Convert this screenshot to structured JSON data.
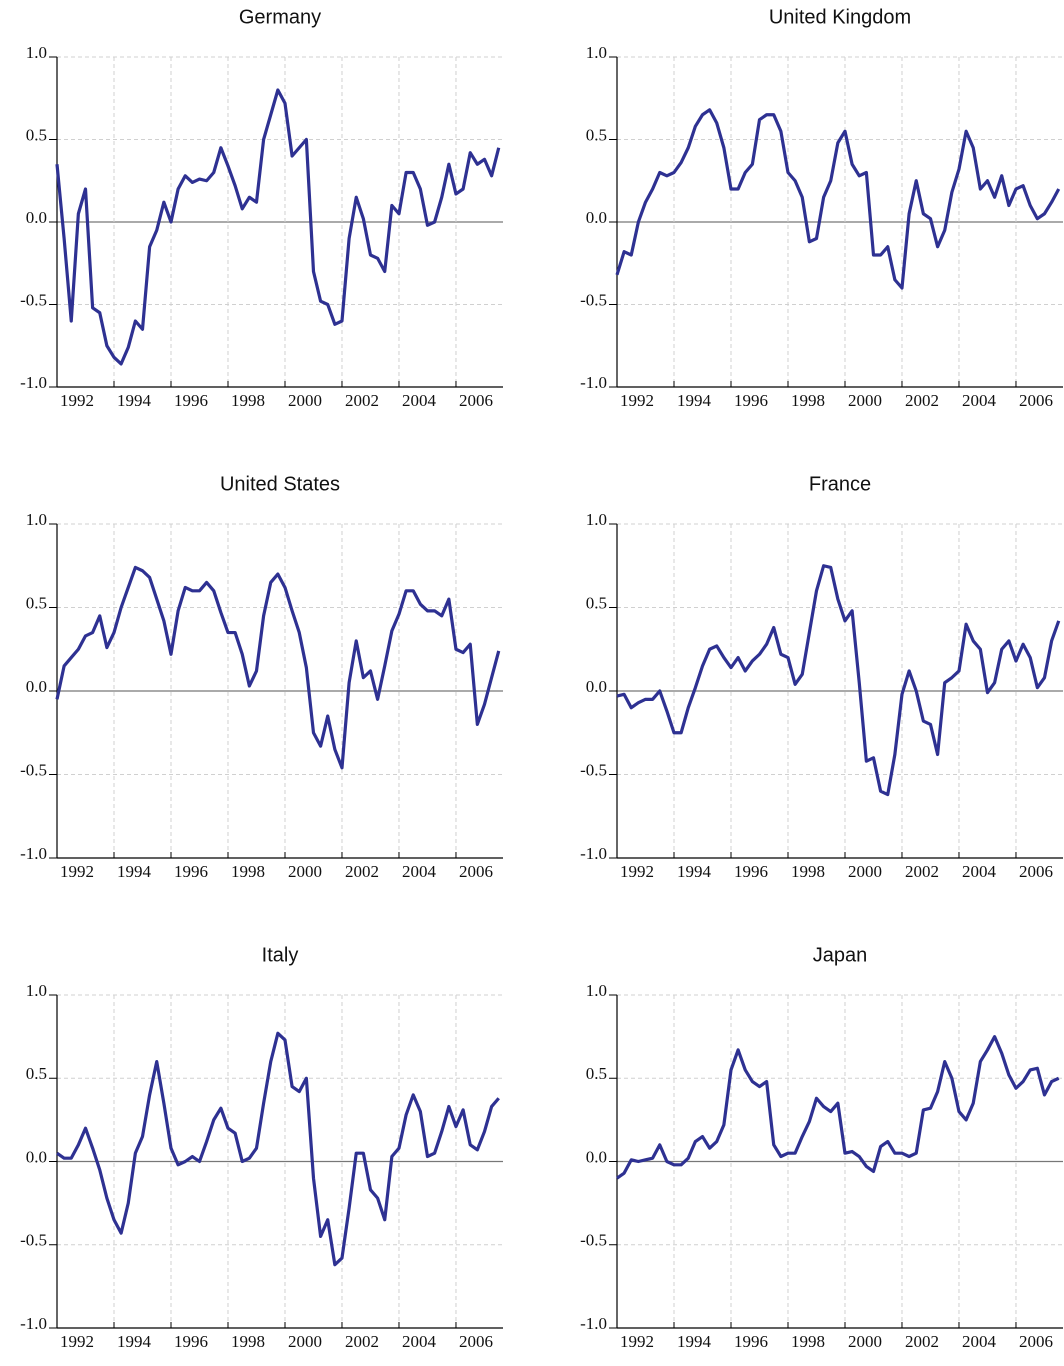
{
  "chart_data": [
    {
      "type": "line",
      "title": "Germany",
      "color": "#2e3192",
      "grid": true,
      "zero_line": true,
      "xlim": [
        1992,
        2007.65
      ],
      "xticks": [
        1992,
        1994,
        1996,
        1998,
        2000,
        2002,
        2004,
        2006
      ],
      "ylim": [
        -1,
        1
      ],
      "yticks": [
        {
          "value": 1,
          "label": "1.0"
        },
        0.5,
        {
          "value": 0,
          "label": "0.0"
        },
        -0.5,
        {
          "value": -1,
          "label": "-1.0"
        }
      ],
      "x": [
        1992,
        1992.25,
        1992.5,
        1992.75,
        1993,
        1993.25,
        1993.5,
        1993.75,
        1994,
        1994.25,
        1994.5,
        1994.75,
        1995,
        1995.25,
        1995.5,
        1995.75,
        1996,
        1996.25,
        1996.5,
        1996.75,
        1997,
        1997.25,
        1997.5,
        1997.75,
        1998,
        1998.25,
        1998.5,
        1998.75,
        1999,
        1999.25,
        1999.5,
        1999.75,
        2000,
        2000.25,
        2000.5,
        2000.75,
        2001,
        2001.25,
        2001.5,
        2001.75,
        2002,
        2002.25,
        2002.5,
        2002.75,
        2003,
        2003.25,
        2003.5,
        2003.75,
        2004,
        2004.25,
        2004.5,
        2004.75,
        2005,
        2005.25,
        2005.5,
        2005.75,
        2006,
        2006.25,
        2006.5,
        2006.75,
        2007,
        2007.25,
        2007.5
      ],
      "values": [
        0.35,
        -0.1,
        -0.6,
        0.05,
        0.2,
        -0.52,
        -0.55,
        -0.75,
        -0.82,
        -0.86,
        -0.76,
        -0.6,
        -0.65,
        -0.15,
        -0.05,
        0.12,
        0.0,
        0.2,
        0.28,
        0.24,
        0.26,
        0.25,
        0.3,
        0.45,
        0.34,
        0.22,
        0.08,
        0.15,
        0.12,
        0.5,
        0.65,
        0.8,
        0.72,
        0.4,
        0.45,
        0.5,
        -0.3,
        -0.48,
        -0.5,
        -0.62,
        -0.6,
        -0.1,
        0.15,
        0.02,
        -0.2,
        -0.22,
        -0.3,
        0.1,
        0.05,
        0.3,
        0.3,
        0.2,
        -0.02,
        0.0,
        0.15,
        0.35,
        0.17,
        0.2,
        0.42,
        0.35,
        0.38,
        0.28,
        0.45
      ]
    },
    {
      "type": "line",
      "title": "United Kingdom",
      "color": "#2e3192",
      "grid": true,
      "zero_line": true,
      "xlim": [
        1992,
        2007.65
      ],
      "xticks": [
        1992,
        1994,
        1996,
        1998,
        2000,
        2002,
        2004,
        2006
      ],
      "ylim": [
        -1,
        1
      ],
      "yticks": [
        {
          "value": 1,
          "label": "1.0"
        },
        0.5,
        {
          "value": 0,
          "label": "0.0"
        },
        -0.5,
        {
          "value": -1,
          "label": "-1.0"
        }
      ],
      "x": [
        1992,
        1992.25,
        1992.5,
        1992.75,
        1993,
        1993.25,
        1993.5,
        1993.75,
        1994,
        1994.25,
        1994.5,
        1994.75,
        1995,
        1995.25,
        1995.5,
        1995.75,
        1996,
        1996.25,
        1996.5,
        1996.75,
        1997,
        1997.25,
        1997.5,
        1997.75,
        1998,
        1998.25,
        1998.5,
        1998.75,
        1999,
        1999.25,
        1999.5,
        1999.75,
        2000,
        2000.25,
        2000.5,
        2000.75,
        2001,
        2001.25,
        2001.5,
        2001.75,
        2002,
        2002.25,
        2002.5,
        2002.75,
        2003,
        2003.25,
        2003.5,
        2003.75,
        2004,
        2004.25,
        2004.5,
        2004.75,
        2005,
        2005.25,
        2005.5,
        2005.75,
        2006,
        2006.25,
        2006.5,
        2006.75,
        2007,
        2007.25,
        2007.5
      ],
      "values": [
        -0.32,
        -0.18,
        -0.2,
        0.0,
        0.12,
        0.2,
        0.3,
        0.28,
        0.3,
        0.36,
        0.45,
        0.58,
        0.65,
        0.68,
        0.6,
        0.45,
        0.2,
        0.2,
        0.3,
        0.35,
        0.62,
        0.65,
        0.65,
        0.55,
        0.3,
        0.25,
        0.15,
        -0.12,
        -0.1,
        0.15,
        0.25,
        0.48,
        0.55,
        0.35,
        0.28,
        0.3,
        -0.2,
        -0.2,
        -0.15,
        -0.35,
        -0.4,
        0.05,
        0.25,
        0.05,
        0.02,
        -0.15,
        -0.05,
        0.18,
        0.32,
        0.55,
        0.45,
        0.2,
        0.25,
        0.15,
        0.28,
        0.1,
        0.2,
        0.22,
        0.1,
        0.02,
        0.05,
        0.12,
        0.2
      ]
    },
    {
      "type": "line",
      "title": "United States",
      "color": "#2e3192",
      "grid": true,
      "zero_line": true,
      "xlim": [
        1992,
        2007.65
      ],
      "xticks": [
        1992,
        1994,
        1996,
        1998,
        2000,
        2002,
        2004,
        2006
      ],
      "ylim": [
        -1,
        1
      ],
      "yticks": [
        {
          "value": 1,
          "label": "1.0"
        },
        0.5,
        {
          "value": 0,
          "label": "0.0"
        },
        -0.5,
        {
          "value": -1,
          "label": "-1.0"
        }
      ],
      "x": [
        1992,
        1992.25,
        1992.5,
        1992.75,
        1993,
        1993.25,
        1993.5,
        1993.75,
        1994,
        1994.25,
        1994.5,
        1994.75,
        1995,
        1995.25,
        1995.5,
        1995.75,
        1996,
        1996.25,
        1996.5,
        1996.75,
        1997,
        1997.25,
        1997.5,
        1997.75,
        1998,
        1998.25,
        1998.5,
        1998.75,
        1999,
        1999.25,
        1999.5,
        1999.75,
        2000,
        2000.25,
        2000.5,
        2000.75,
        2001,
        2001.25,
        2001.5,
        2001.75,
        2002,
        2002.25,
        2002.5,
        2002.75,
        2003,
        2003.25,
        2003.5,
        2003.75,
        2004,
        2004.25,
        2004.5,
        2004.75,
        2005,
        2005.25,
        2005.5,
        2005.75,
        2006,
        2006.25,
        2006.5,
        2006.75,
        2007,
        2007.25,
        2007.5
      ],
      "values": [
        -0.05,
        0.15,
        0.2,
        0.25,
        0.33,
        0.35,
        0.45,
        0.26,
        0.35,
        0.5,
        0.62,
        0.74,
        0.72,
        0.68,
        0.55,
        0.42,
        0.22,
        0.48,
        0.62,
        0.6,
        0.6,
        0.65,
        0.6,
        0.47,
        0.35,
        0.35,
        0.22,
        0.03,
        0.12,
        0.45,
        0.65,
        0.7,
        0.62,
        0.48,
        0.35,
        0.14,
        -0.25,
        -0.33,
        -0.15,
        -0.35,
        -0.46,
        0.05,
        0.3,
        0.08,
        0.12,
        -0.05,
        0.15,
        0.36,
        0.46,
        0.6,
        0.6,
        0.52,
        0.48,
        0.48,
        0.45,
        0.55,
        0.25,
        0.23,
        0.28,
        -0.2,
        -0.08,
        0.08,
        0.24
      ]
    },
    {
      "type": "line",
      "title": "France",
      "color": "#2e3192",
      "grid": true,
      "zero_line": true,
      "xlim": [
        1992,
        2007.65
      ],
      "xticks": [
        1992,
        1994,
        1996,
        1998,
        2000,
        2002,
        2004,
        2006
      ],
      "ylim": [
        -1,
        1
      ],
      "yticks": [
        {
          "value": 1,
          "label": "1.0"
        },
        0.5,
        {
          "value": 0,
          "label": "0.0"
        },
        -0.5,
        {
          "value": -1,
          "label": "-1.0"
        }
      ],
      "x": [
        1992,
        1992.25,
        1992.5,
        1992.75,
        1993,
        1993.25,
        1993.5,
        1993.75,
        1994,
        1994.25,
        1994.5,
        1994.75,
        1995,
        1995.25,
        1995.5,
        1995.75,
        1996,
        1996.25,
        1996.5,
        1996.75,
        1997,
        1997.25,
        1997.5,
        1997.75,
        1998,
        1998.25,
        1998.5,
        1998.75,
        1999,
        1999.25,
        1999.5,
        1999.75,
        2000,
        2000.25,
        2000.5,
        2000.75,
        2001,
        2001.25,
        2001.5,
        2001.75,
        2002,
        2002.25,
        2002.5,
        2002.75,
        2003,
        2003.25,
        2003.5,
        2003.75,
        2004,
        2004.25,
        2004.5,
        2004.75,
        2005,
        2005.25,
        2005.5,
        2005.75,
        2006,
        2006.25,
        2006.5,
        2006.75,
        2007,
        2007.25,
        2007.5
      ],
      "values": [
        -0.03,
        -0.02,
        -0.1,
        -0.07,
        -0.05,
        -0.05,
        0.0,
        -0.12,
        -0.25,
        -0.25,
        -0.1,
        0.02,
        0.15,
        0.25,
        0.27,
        0.2,
        0.14,
        0.2,
        0.12,
        0.18,
        0.22,
        0.28,
        0.38,
        0.22,
        0.2,
        0.04,
        0.1,
        0.35,
        0.6,
        0.75,
        0.74,
        0.55,
        0.42,
        0.48,
        0.05,
        -0.42,
        -0.4,
        -0.6,
        -0.62,
        -0.38,
        -0.02,
        0.12,
        0.0,
        -0.18,
        -0.2,
        -0.38,
        0.05,
        0.08,
        0.12,
        0.4,
        0.3,
        0.25,
        -0.01,
        0.05,
        0.25,
        0.3,
        0.18,
        0.28,
        0.2,
        0.02,
        0.08,
        0.3,
        0.42
      ]
    },
    {
      "type": "line",
      "title": "Italy",
      "color": "#2e3192",
      "grid": true,
      "zero_line": true,
      "xlim": [
        1992,
        2007.65
      ],
      "xticks": [
        1992,
        1994,
        1996,
        1998,
        2000,
        2002,
        2004,
        2006
      ],
      "ylim": [
        -1,
        1
      ],
      "yticks": [
        {
          "value": 1,
          "label": "1.0"
        },
        0.5,
        {
          "value": 0,
          "label": "0.0"
        },
        -0.5,
        {
          "value": -1,
          "label": "-1.0"
        }
      ],
      "x": [
        1992,
        1992.25,
        1992.5,
        1992.75,
        1993,
        1993.25,
        1993.5,
        1993.75,
        1994,
        1994.25,
        1994.5,
        1994.75,
        1995,
        1995.25,
        1995.5,
        1995.75,
        1996,
        1996.25,
        1996.5,
        1996.75,
        1997,
        1997.25,
        1997.5,
        1997.75,
        1998,
        1998.25,
        1998.5,
        1998.75,
        1999,
        1999.25,
        1999.5,
        1999.75,
        2000,
        2000.25,
        2000.5,
        2000.75,
        2001,
        2001.25,
        2001.5,
        2001.75,
        2002,
        2002.25,
        2002.5,
        2002.75,
        2003,
        2003.25,
        2003.5,
        2003.75,
        2004,
        2004.25,
        2004.5,
        2004.75,
        2005,
        2005.25,
        2005.5,
        2005.75,
        2006,
        2006.25,
        2006.5,
        2006.75,
        2007,
        2007.25,
        2007.5
      ],
      "values": [
        0.05,
        0.02,
        0.02,
        0.1,
        0.2,
        0.08,
        -0.05,
        -0.22,
        -0.35,
        -0.43,
        -0.25,
        0.05,
        0.15,
        0.4,
        0.6,
        0.35,
        0.08,
        -0.02,
        0.0,
        0.03,
        0.0,
        0.12,
        0.25,
        0.32,
        0.2,
        0.17,
        0.0,
        0.02,
        0.08,
        0.35,
        0.6,
        0.77,
        0.73,
        0.45,
        0.42,
        0.5,
        -0.1,
        -0.45,
        -0.35,
        -0.62,
        -0.58,
        -0.28,
        0.05,
        0.05,
        -0.17,
        -0.22,
        -0.35,
        0.03,
        0.08,
        0.28,
        0.4,
        0.3,
        0.03,
        0.05,
        0.18,
        0.33,
        0.21,
        0.31,
        0.1,
        0.07,
        0.18,
        0.33,
        0.38
      ]
    },
    {
      "type": "line",
      "title": "Japan",
      "color": "#2e3192",
      "grid": true,
      "zero_line": true,
      "xlim": [
        1992,
        2007.65
      ],
      "xticks": [
        1992,
        1994,
        1996,
        1998,
        2000,
        2002,
        2004,
        2006
      ],
      "ylim": [
        -1,
        1
      ],
      "yticks": [
        {
          "value": 1,
          "label": "1.0"
        },
        0.5,
        {
          "value": 0,
          "label": "0.0"
        },
        -0.5,
        {
          "value": -1,
          "label": "-1.0"
        }
      ],
      "x": [
        1992,
        1992.25,
        1992.5,
        1992.75,
        1993,
        1993.25,
        1993.5,
        1993.75,
        1994,
        1994.25,
        1994.5,
        1994.75,
        1995,
        1995.25,
        1995.5,
        1995.75,
        1996,
        1996.25,
        1996.5,
        1996.75,
        1997,
        1997.25,
        1997.5,
        1997.75,
        1998,
        1998.25,
        1998.5,
        1998.75,
        1999,
        1999.25,
        1999.5,
        1999.75,
        2000,
        2000.25,
        2000.5,
        2000.75,
        2001,
        2001.25,
        2001.5,
        2001.75,
        2002,
        2002.25,
        2002.5,
        2002.75,
        2003,
        2003.25,
        2003.5,
        2003.75,
        2004,
        2004.25,
        2004.5,
        2004.75,
        2005,
        2005.25,
        2005.5,
        2005.75,
        2006,
        2006.25,
        2006.5,
        2006.75,
        2007,
        2007.25,
        2007.5
      ],
      "values": [
        -0.1,
        -0.07,
        0.01,
        0.0,
        0.01,
        0.02,
        0.1,
        0.0,
        -0.02,
        -0.02,
        0.02,
        0.12,
        0.15,
        0.08,
        0.12,
        0.22,
        0.55,
        0.67,
        0.55,
        0.48,
        0.45,
        0.48,
        0.1,
        0.03,
        0.05,
        0.05,
        0.15,
        0.24,
        0.38,
        0.33,
        0.3,
        0.35,
        0.05,
        0.06,
        0.03,
        -0.03,
        -0.06,
        0.09,
        0.12,
        0.05,
        0.05,
        0.03,
        0.05,
        0.31,
        0.32,
        0.42,
        0.6,
        0.5,
        0.3,
        0.25,
        0.35,
        0.6,
        0.67,
        0.75,
        0.65,
        0.52,
        0.44,
        0.48,
        0.55,
        0.56,
        0.4,
        0.48,
        0.5
      ]
    }
  ]
}
